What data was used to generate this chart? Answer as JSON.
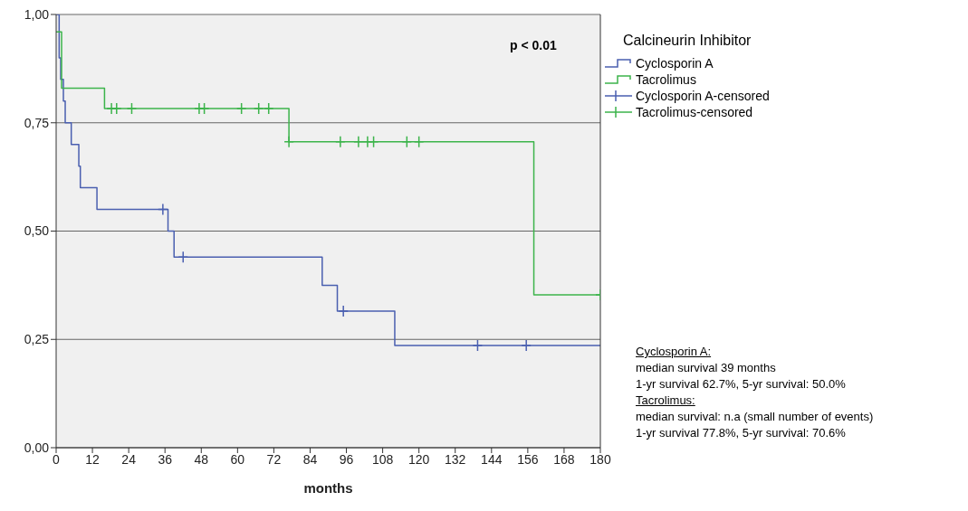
{
  "chart_data": {
    "type": "step",
    "xlabel": "months",
    "legend_title": "Calcineurin Inhibitor",
    "xlim": [
      0,
      180
    ],
    "xticks": [
      0,
      12,
      24,
      36,
      48,
      60,
      72,
      84,
      96,
      108,
      120,
      132,
      144,
      156,
      168,
      180
    ],
    "ylim": [
      0,
      1
    ],
    "yticks": [
      {
        "value": 0,
        "label": "0,00"
      },
      {
        "value": 0.25,
        "label": "0,25"
      },
      {
        "value": 0.5,
        "label": "0,50"
      },
      {
        "value": 0.75,
        "label": "0,75"
      },
      {
        "value": 1,
        "label": "1,00"
      }
    ],
    "grid": "y",
    "legend": "top right",
    "series": [
      {
        "name": "Cyclosporin A",
        "color": "#4a5fb0",
        "x": [
          0,
          1,
          1.5,
          2.4,
          3,
          5,
          7.5,
          8,
          13.5,
          37,
          39,
          88,
          93,
          112,
          180
        ],
        "values": [
          1,
          0.9,
          0.85,
          0.8,
          0.75,
          0.7,
          0.65,
          0.6,
          0.55,
          0.5,
          0.44,
          0.375,
          0.315,
          0.236,
          0.236
        ]
      },
      {
        "name": "Tacrolimus",
        "color": "#3cb44b",
        "x": [
          0,
          1.8,
          16,
          77,
          158,
          180
        ],
        "values": [
          0.96,
          0.83,
          0.783,
          0.706,
          0.353,
          0.353
        ]
      },
      {
        "name": "Cyclosporin A-censored",
        "type": "scatter",
        "marker": "cross",
        "color": "#4a5fb0",
        "x": [
          35.3,
          42,
          95,
          139.4,
          155.5
        ],
        "values": [
          0.55,
          0.44,
          0.315,
          0.236,
          0.236
        ]
      },
      {
        "name": "Tacrolimus-censored",
        "type": "scatter",
        "marker": "cross",
        "color": "#3cb44b",
        "x": [
          18.3,
          20,
          25,
          47.3,
          49,
          61.3,
          67,
          70.3,
          77,
          94,
          100,
          103,
          105,
          116,
          120,
          180
        ],
        "values": [
          0.783,
          0.783,
          0.783,
          0.783,
          0.783,
          0.783,
          0.783,
          0.783,
          0.706,
          0.706,
          0.706,
          0.706,
          0.706,
          0.706,
          0.706,
          0.353
        ]
      }
    ],
    "annotations": [
      "p < 0.01",
      "Cyclosporin A:",
      "median survival 39 months",
      "1-yr survival 62.7%, 5-yr survival: 50.0%",
      "Tacrolimus:",
      "median survival: n.a (small number of events)",
      "1-yr survival 77.8%, 5-yr survival: 70.6%"
    ]
  }
}
